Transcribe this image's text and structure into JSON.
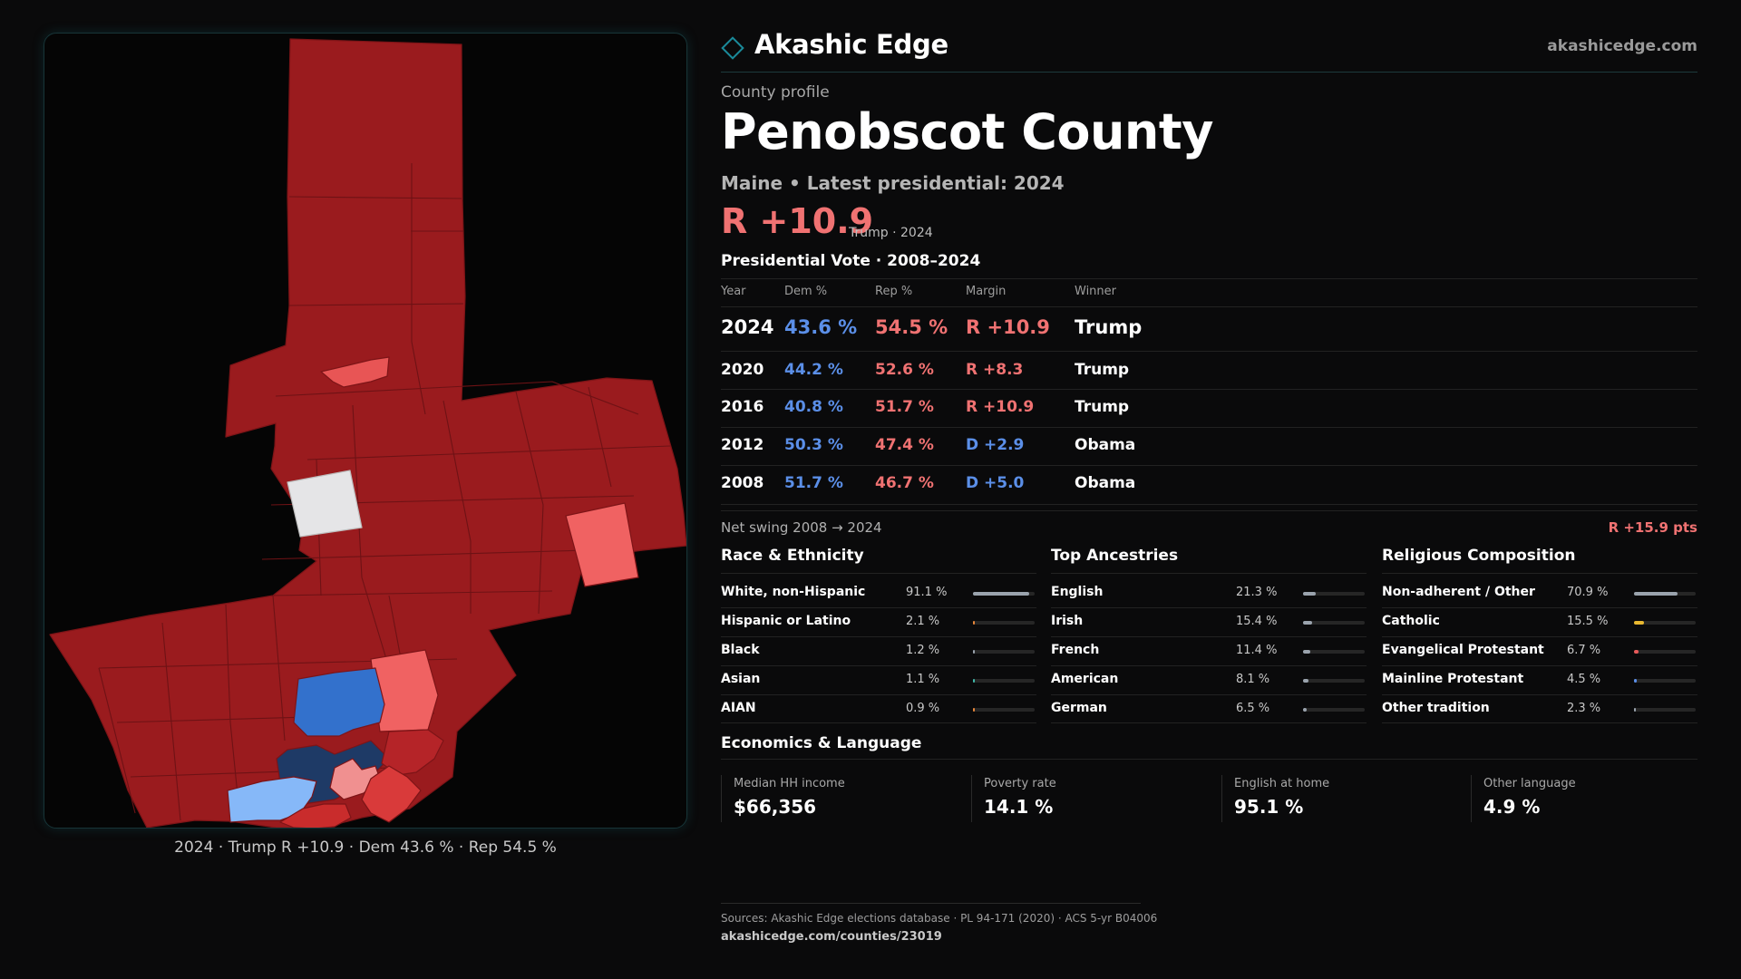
{
  "brand": {
    "name": "Akashic Edge",
    "url": "akashicedge.com",
    "logo_icon": "diamond-outline-icon",
    "accent": "#1a8a9a"
  },
  "profile": {
    "label": "County profile",
    "county": "Penobscot County",
    "subtitle": "Maine • Latest presidential: 2024",
    "headline_margin": "R +10.9",
    "headline_note": "Trump · 2024"
  },
  "colors": {
    "dem": "#5b8fe8",
    "rep": "#f07272",
    "rep_dark": "#9a1b1e",
    "dem_dark": "#1e3a66",
    "neutral": "#e5e5e7"
  },
  "vote_history": {
    "title": "Presidential Vote · 2008–2024",
    "headers": {
      "year": "Year",
      "dem": "Dem %",
      "rep": "Rep %",
      "margin": "Margin",
      "winner": "Winner"
    },
    "rows": [
      {
        "year": "2024",
        "dem": "43.6 %",
        "rep": "54.5 %",
        "margin": "R +10.9",
        "margin_party": "rep",
        "winner": "Trump"
      },
      {
        "year": "2020",
        "dem": "44.2 %",
        "rep": "52.6 %",
        "margin": "R +8.3",
        "margin_party": "rep",
        "winner": "Trump"
      },
      {
        "year": "2016",
        "dem": "40.8 %",
        "rep": "51.7 %",
        "margin": "R +10.9",
        "margin_party": "rep",
        "winner": "Trump"
      },
      {
        "year": "2012",
        "dem": "50.3 %",
        "rep": "47.4 %",
        "margin": "D +2.9",
        "margin_party": "dem",
        "winner": "Obama"
      },
      {
        "year": "2008",
        "dem": "51.7 %",
        "rep": "46.7 %",
        "margin": "D +5.0",
        "margin_party": "dem",
        "winner": "Obama"
      }
    ],
    "swing_label": "Net swing 2008 → 2024",
    "swing_value": "R +15.9 pts"
  },
  "demographics": [
    {
      "title": "Race & Ethnicity",
      "bar_color": "#9aa3ad",
      "items": [
        {
          "label": "White, non-Hispanic",
          "value": "91.1 %",
          "share": 0.911,
          "color": "#9aa3ad"
        },
        {
          "label": "Hispanic or Latino",
          "value": "2.1 %",
          "share": 0.021,
          "color": "#e8873a"
        },
        {
          "label": "Black",
          "value": "1.2 %",
          "share": 0.012,
          "color": "#9aa3ad"
        },
        {
          "label": "Asian",
          "value": "1.1 %",
          "share": 0.011,
          "color": "#3fb8a8"
        },
        {
          "label": "AIAN",
          "value": "0.9 %",
          "share": 0.009,
          "color": "#e8873a"
        }
      ]
    },
    {
      "title": "Top Ancestries",
      "items": [
        {
          "label": "English",
          "value": "21.3 %",
          "share": 0.213,
          "color": "#9aa3ad"
        },
        {
          "label": "Irish",
          "value": "15.4 %",
          "share": 0.154,
          "color": "#9aa3ad"
        },
        {
          "label": "French",
          "value": "11.4 %",
          "share": 0.114,
          "color": "#9aa3ad"
        },
        {
          "label": "American",
          "value": "8.1 %",
          "share": 0.081,
          "color": "#9aa3ad"
        },
        {
          "label": "German",
          "value": "6.5 %",
          "share": 0.065,
          "color": "#9aa3ad"
        }
      ]
    },
    {
      "title": "Religious Composition",
      "items": [
        {
          "label": "Non-adherent / Other",
          "value": "70.9 %",
          "share": 0.709,
          "color": "#9aa3ad"
        },
        {
          "label": "Catholic",
          "value": "15.5 %",
          "share": 0.155,
          "color": "#e8b830"
        },
        {
          "label": "Evangelical Protestant",
          "value": "6.7 %",
          "share": 0.067,
          "color": "#e85a5a"
        },
        {
          "label": "Mainline Protestant",
          "value": "4.5 %",
          "share": 0.045,
          "color": "#5b8fe8"
        },
        {
          "label": "Other tradition",
          "value": "2.3 %",
          "share": 0.023,
          "color": "#9aa3ad"
        }
      ]
    }
  ],
  "economics": {
    "title": "Economics & Language",
    "items": [
      {
        "label": "Median HH income",
        "value": "$66,356"
      },
      {
        "label": "Poverty rate",
        "value": "14.1 %"
      },
      {
        "label": "English at home",
        "value": "95.1 %"
      },
      {
        "label": "Other language",
        "value": "4.9 %"
      }
    ]
  },
  "map": {
    "caption": "2024 · Trump R +10.9 · Dem 43.6 % · Rep 54.5 %"
  },
  "sources": {
    "text": "Sources: Akashic Edge elections database · PL 94-171 (2020) · ACS 5-yr B04006",
    "url": "akashicedge.com/counties/23019"
  }
}
